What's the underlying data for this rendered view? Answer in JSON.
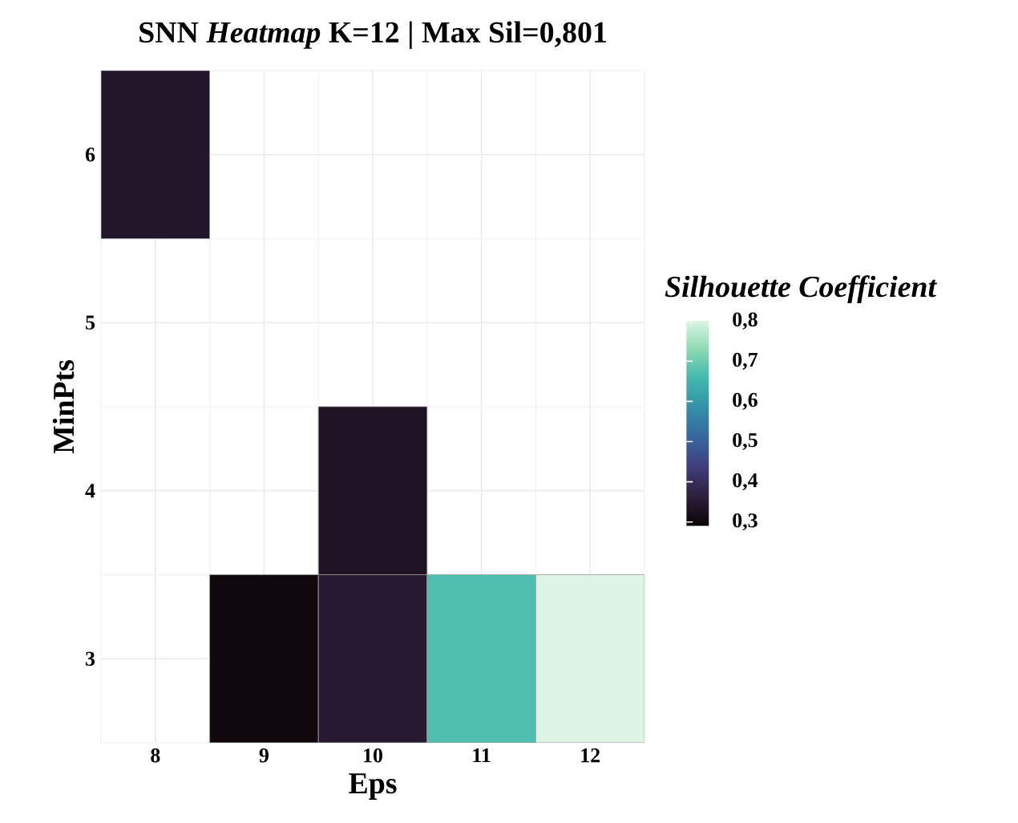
{
  "chart_data": {
    "type": "heatmap",
    "title": "SNN *Heatmap* K=12 | Max Sil=0,801",
    "xlabel": "Eps",
    "ylabel": "MinPts",
    "clabel": "Silhouette Coefficient",
    "categories": [
      "8",
      "9",
      "10",
      "11",
      "12"
    ],
    "y_categories": [
      "6",
      "5",
      "4",
      "3"
    ],
    "cells": [
      [
        0.34,
        null,
        null,
        null,
        null
      ],
      [
        null,
        null,
        null,
        null,
        null
      ],
      [
        null,
        null,
        0.33,
        null,
        null
      ],
      [
        null,
        0.3,
        0.35,
        0.67,
        0.801
      ]
    ],
    "clim": [
      0.29,
      0.801
    ],
    "cticks": [
      {
        "value": 0.3,
        "label": "0,3"
      },
      {
        "value": 0.4,
        "label": "0,4"
      },
      {
        "value": 0.5,
        "label": "0,5"
      },
      {
        "value": 0.6,
        "label": "0,6"
      },
      {
        "value": 0.7,
        "label": "0,7"
      },
      {
        "value": 0.8,
        "label": "0,8"
      }
    ],
    "grid": true
  }
}
